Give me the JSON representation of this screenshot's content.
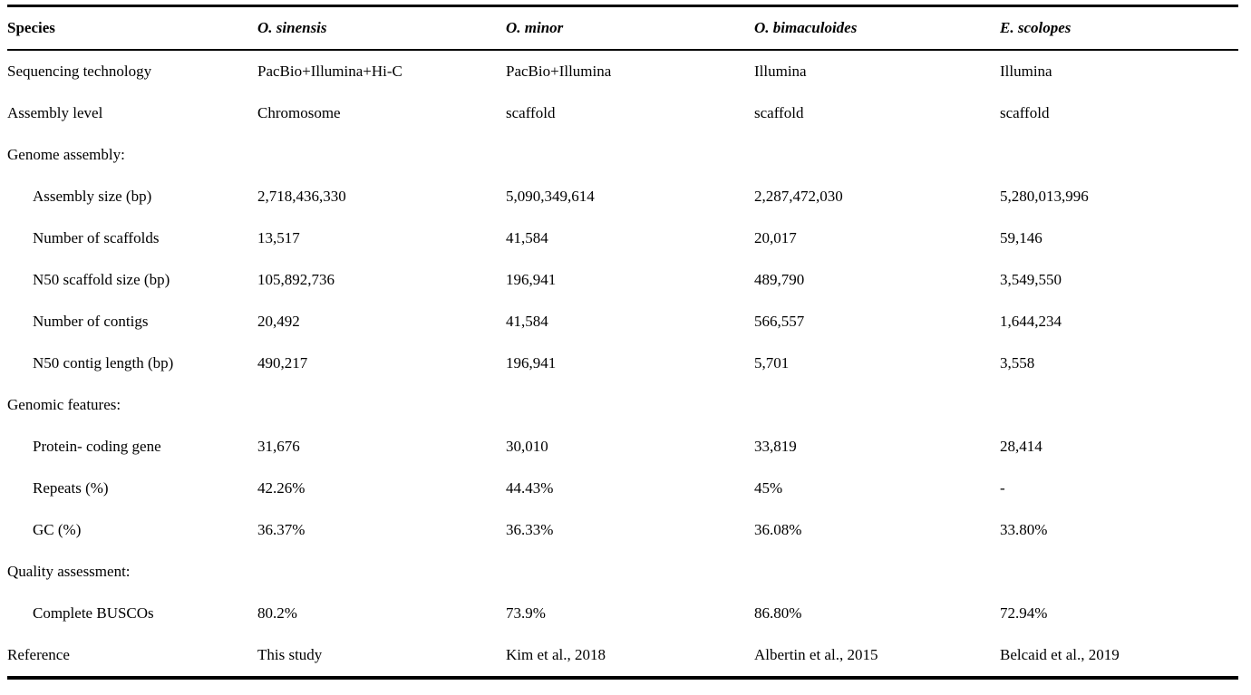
{
  "table": {
    "columns": [
      "Species",
      "O. sinensis",
      "O. minor",
      "O. bimaculoides",
      "E. scolopes"
    ],
    "rows": [
      {
        "label": "Sequencing technology",
        "indent": false,
        "section": false,
        "values": [
          "PacBio+Illumina+Hi-C",
          "PacBio+Illumina",
          "Illumina",
          "Illumina"
        ]
      },
      {
        "label": "Assembly level",
        "indent": false,
        "section": false,
        "values": [
          "Chromosome",
          "scaffold",
          "scaffold",
          "scaffold"
        ]
      },
      {
        "label": "Genome assembly:",
        "indent": false,
        "section": true,
        "values": [
          "",
          "",
          "",
          ""
        ]
      },
      {
        "label": "Assembly size (bp)",
        "indent": true,
        "section": false,
        "values": [
          "2,718,436,330",
          "5,090,349,614",
          "2,287,472,030",
          "5,280,013,996"
        ]
      },
      {
        "label": "Number of scaffolds",
        "indent": true,
        "section": false,
        "values": [
          "13,517",
          "41,584",
          "20,017",
          "59,146"
        ]
      },
      {
        "label": "N50 scaffold size (bp)",
        "indent": true,
        "section": false,
        "values": [
          "105,892,736",
          "196,941",
          "489,790",
          "3,549,550"
        ]
      },
      {
        "label": "Number of contigs",
        "indent": true,
        "section": false,
        "values": [
          "20,492",
          "41,584",
          "566,557",
          "1,644,234"
        ]
      },
      {
        "label": "N50 contig length (bp)",
        "indent": true,
        "section": false,
        "values": [
          "490,217",
          "196,941",
          "5,701",
          "3,558"
        ]
      },
      {
        "label": "Genomic features:",
        "indent": false,
        "section": true,
        "values": [
          "",
          "",
          "",
          ""
        ]
      },
      {
        "label": "Protein- coding gene",
        "indent": true,
        "section": false,
        "values": [
          "31,676",
          "30,010",
          "33,819",
          "28,414"
        ]
      },
      {
        "label": "Repeats (%)",
        "indent": true,
        "section": false,
        "values": [
          "42.26%",
          "44.43%",
          "45%",
          "-"
        ]
      },
      {
        "label": "GC (%)",
        "indent": true,
        "section": false,
        "values": [
          "36.37%",
          "36.33%",
          "36.08%",
          "33.80%"
        ]
      },
      {
        "label": "Quality assessment:",
        "indent": false,
        "section": true,
        "values": [
          "",
          "",
          "",
          ""
        ]
      },
      {
        "label": "Complete BUSCOs",
        "indent": true,
        "section": false,
        "values": [
          "80.2%",
          "73.9%",
          "86.80%",
          "72.94%"
        ]
      },
      {
        "label": "Reference",
        "indent": false,
        "section": false,
        "values": [
          "This study",
          "Kim et al., 2018",
          "Albertin et al., 2015",
          "Belcaid et al., 2019"
        ]
      }
    ],
    "colors": {
      "text": "#000000",
      "background": "#ffffff",
      "rule": "#000000"
    }
  }
}
